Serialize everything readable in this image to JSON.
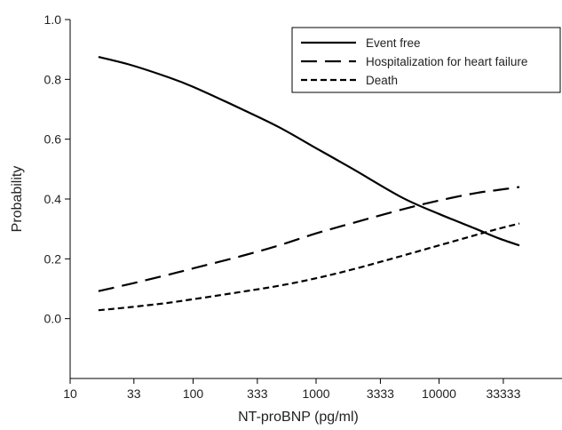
{
  "chart_data": {
    "type": "line",
    "xlabel": "NT-proBNP (pg/ml)",
    "ylabel": "Probability",
    "x_scale": "log",
    "xlim": [
      10,
      100000
    ],
    "ylim": [
      -0.2,
      1.0
    ],
    "x_ticks": [
      10,
      33,
      100,
      333,
      1000,
      3333,
      10000,
      33333
    ],
    "x_tick_labels": [
      "10",
      "33",
      "100",
      "333",
      "1000",
      "3333",
      "10000",
      "33333"
    ],
    "y_ticks": [
      0.0,
      0.2,
      0.4,
      0.6,
      0.8,
      1.0
    ],
    "y_tick_labels": [
      "0.0",
      "0.2",
      "0.4",
      "0.6",
      "0.8",
      "1.0"
    ],
    "grid": false,
    "legend_position": "top-right",
    "series": [
      {
        "name": "Event free",
        "style": "solid",
        "x": [
          17,
          30,
          60,
          100,
          250,
          500,
          1000,
          2000,
          5000,
          10000,
          20000,
          30000,
          45000
        ],
        "y": [
          0.875,
          0.85,
          0.81,
          0.775,
          0.7,
          0.64,
          0.57,
          0.5,
          0.405,
          0.35,
          0.3,
          0.27,
          0.245
        ]
      },
      {
        "name": "Hospitalization for heart failure",
        "style": "long-dash",
        "x": [
          17,
          30,
          60,
          100,
          250,
          500,
          1000,
          2000,
          5000,
          10000,
          20000,
          30000,
          45000
        ],
        "y": [
          0.092,
          0.115,
          0.145,
          0.168,
          0.21,
          0.245,
          0.285,
          0.32,
          0.365,
          0.395,
          0.42,
          0.43,
          0.44
        ]
      },
      {
        "name": "Death",
        "style": "short-dash",
        "x": [
          17,
          30,
          60,
          100,
          250,
          500,
          1000,
          2000,
          5000,
          10000,
          20000,
          30000,
          45000
        ],
        "y": [
          0.028,
          0.038,
          0.052,
          0.065,
          0.09,
          0.11,
          0.135,
          0.165,
          0.21,
          0.245,
          0.28,
          0.3,
          0.318
        ]
      }
    ]
  }
}
